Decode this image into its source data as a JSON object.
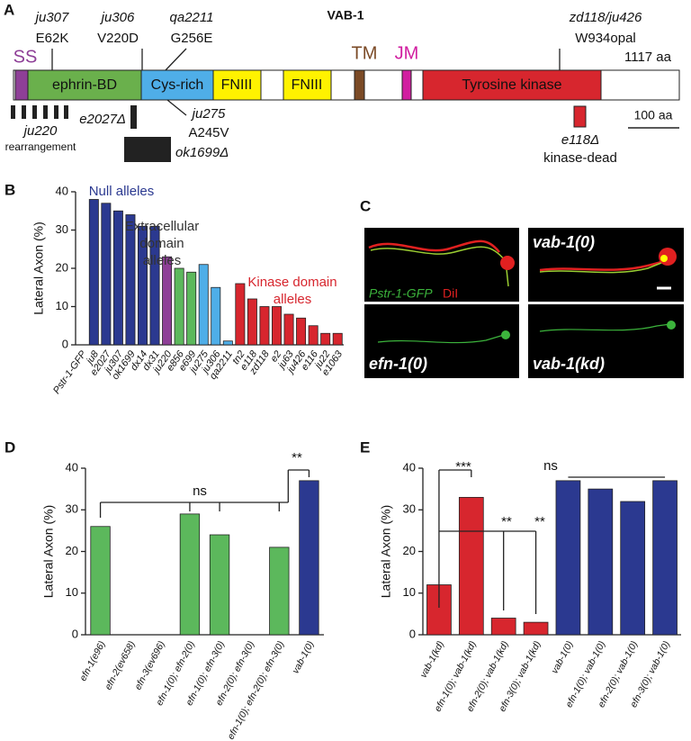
{
  "panel_a": {
    "label": "A",
    "title": "VAB-1",
    "length": "1117 aa",
    "scale": "100 aa",
    "domains": [
      "SS",
      "ephrin-BD",
      "Cys-rich",
      "FNIII",
      "FNIII",
      "TM",
      "JM",
      "Tyrosine kinase"
    ],
    "mutations_above": [
      {
        "allele": "ju307",
        "change": "E62K"
      },
      {
        "allele": "ju306",
        "change": "V220D"
      },
      {
        "allele": "qa2211",
        "change": "G256E"
      },
      {
        "allele": "zd118/ju426",
        "change": "W934opal"
      }
    ],
    "mutations_below": [
      {
        "allele": "ju220",
        "change": "rearrangement"
      },
      {
        "allele": "e2027Δ"
      },
      {
        "allele": "ok1699Δ"
      },
      {
        "allele": "ju275",
        "change": "A245V"
      },
      {
        "allele": "e118Δ",
        "change": "kinase-dead"
      }
    ]
  },
  "panel_c": {
    "label": "C",
    "images": [
      {
        "caption": [
          "Pstr-1-GFP",
          "DiI"
        ]
      },
      {
        "caption": [
          "vab-1(0)"
        ]
      },
      {
        "caption": [
          "efn-1(0)"
        ]
      },
      {
        "caption": [
          "vab-1(kd)"
        ]
      }
    ]
  },
  "chart_data": [
    {
      "type": "bar",
      "panel": "B",
      "ylabel": "Lateral Axon (%)",
      "ylim": [
        0,
        40
      ],
      "yticks": [
        0,
        10,
        20,
        30,
        40
      ],
      "categories": [
        "Pstr-1-GFP",
        "ju8",
        "e2027",
        "ju307",
        "ok1699",
        "dx14",
        "dx31",
        "ju220",
        "e856",
        "e699",
        "ju275",
        "ju306",
        "qa2211",
        "tn2",
        "e118",
        "zd118",
        "e2",
        "ju63",
        "ju426",
        "e116",
        "ju22",
        "e1063"
      ],
      "values": [
        0,
        38,
        37,
        35,
        34,
        31,
        31,
        23,
        20,
        19,
        21,
        15,
        1,
        16,
        12,
        10,
        10,
        8,
        7,
        5,
        3,
        3
      ],
      "colors": [
        "#2b3990",
        "#2b3990",
        "#2b3990",
        "#2b3990",
        "#2b3990",
        "#2b3990",
        "#2b3990",
        "#8e3f97",
        "#5cb85c",
        "#5cb85c",
        "#4faee8",
        "#4faee8",
        "#4faee8",
        "#d7262e",
        "#d7262e",
        "#d7262e",
        "#d7262e",
        "#d7262e",
        "#d7262e",
        "#d7262e",
        "#d7262e",
        "#d7262e"
      ],
      "annotations": [
        {
          "lines": [
            "Null alleles"
          ],
          "color": "#2b3990"
        },
        {
          "lines": [
            "Extracellular",
            "domain",
            "alleles"
          ],
          "color": "#333333"
        },
        {
          "lines": [
            "Kinase domain",
            "alleles"
          ],
          "color": "#d7262e"
        }
      ]
    },
    {
      "type": "bar",
      "panel": "D",
      "ylabel": "Lateral Axon (%)",
      "ylim": [
        0,
        40
      ],
      "yticks": [
        0,
        10,
        20,
        30,
        40
      ],
      "categories": [
        "efn-1(e96)",
        "efn-2(ev658)",
        "efn-3(ev696)",
        "efn-1(0); efn-2(0)",
        "efn-1(0); efn-3(0)",
        "efn-2(0); efn-3(0)",
        "efn-1(0); efn-2(0); efn-3(0)",
        "vab-1(0)"
      ],
      "values": [
        26,
        0,
        0,
        29,
        24,
        0,
        21,
        37
      ],
      "colors": [
        "#5cb85c",
        "#5cb85c",
        "#5cb85c",
        "#5cb85c",
        "#5cb85c",
        "#5cb85c",
        "#5cb85c",
        "#2b3990"
      ],
      "annotations": [
        {
          "lines": [
            "ns"
          ],
          "color": "#111111"
        },
        {
          "lines": [
            "**"
          ],
          "color": "#111111"
        }
      ]
    },
    {
      "type": "bar",
      "panel": "E",
      "ylabel": "Lateral Axon (%)",
      "ylim": [
        0,
        40
      ],
      "yticks": [
        0,
        10,
        20,
        30,
        40
      ],
      "categories": [
        "vab-1(kd)",
        "efn-1(0); vab-1(kd)",
        "efn-2(0); vab-1(kd)",
        "efn-3(0); vab-1(kd)",
        "vab-1(0)",
        "efn-1(0); vab-1(0)",
        "efn-2(0); vab-1(0)",
        "efn-3(0); vab-1(0)"
      ],
      "values": [
        12,
        33,
        4,
        3,
        37,
        35,
        32,
        37
      ],
      "colors": [
        "#d7262e",
        "#d7262e",
        "#d7262e",
        "#d7262e",
        "#2b3990",
        "#2b3990",
        "#2b3990",
        "#2b3990"
      ],
      "annotations": [
        {
          "lines": [
            "***"
          ],
          "color": "#111111"
        },
        {
          "lines": [
            "**"
          ],
          "color": "#111111"
        },
        {
          "lines": [
            "**"
          ],
          "color": "#111111"
        },
        {
          "lines": [
            "ns"
          ],
          "color": "#111111"
        }
      ]
    }
  ]
}
